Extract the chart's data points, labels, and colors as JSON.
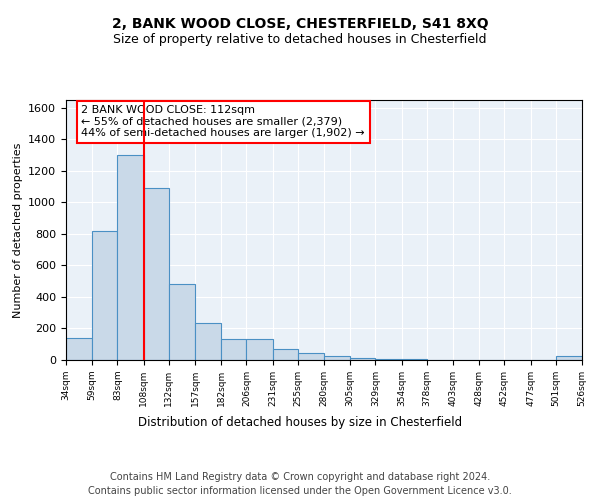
{
  "title": "2, BANK WOOD CLOSE, CHESTERFIELD, S41 8XQ",
  "subtitle": "Size of property relative to detached houses in Chesterfield",
  "xlabel": "Distribution of detached houses by size in Chesterfield",
  "ylabel": "Number of detached properties",
  "footer_line1": "Contains HM Land Registry data © Crown copyright and database right 2024.",
  "footer_line2": "Contains public sector information licensed under the Open Government Licence v3.0.",
  "annotation_line1": "2 BANK WOOD CLOSE: 112sqm",
  "annotation_line2": "← 55% of detached houses are smaller (2,379)",
  "annotation_line3": "44% of semi-detached houses are larger (1,902) →",
  "bar_left_edges": [
    34,
    59,
    83,
    108,
    132,
    157,
    182,
    206,
    231,
    255,
    280,
    305,
    329,
    354,
    378,
    403,
    428,
    452,
    477,
    501
  ],
  "bar_widths": [
    25,
    24,
    25,
    24,
    25,
    25,
    24,
    25,
    24,
    25,
    25,
    24,
    25,
    24,
    25,
    25,
    24,
    25,
    24,
    25
  ],
  "bar_heights": [
    140,
    820,
    1300,
    1090,
    480,
    235,
    135,
    135,
    70,
    45,
    25,
    10,
    5,
    5,
    3,
    2,
    2,
    2,
    1,
    25
  ],
  "bar_facecolor": "#c9d9e8",
  "bar_edgecolor": "#4a90c4",
  "red_line_x": 108,
  "ylim": [
    0,
    1650
  ],
  "xlim": [
    34,
    526
  ],
  "xtick_labels": [
    "34sqm",
    "59sqm",
    "83sqm",
    "108sqm",
    "132sqm",
    "157sqm",
    "182sqm",
    "206sqm",
    "231sqm",
    "255sqm",
    "280sqm",
    "305sqm",
    "329sqm",
    "354sqm",
    "378sqm",
    "403sqm",
    "428sqm",
    "452sqm",
    "477sqm",
    "501sqm",
    "526sqm"
  ],
  "xtick_positions": [
    34,
    59,
    83,
    108,
    132,
    157,
    182,
    206,
    231,
    255,
    280,
    305,
    329,
    354,
    378,
    403,
    428,
    452,
    477,
    501,
    526
  ],
  "background_color": "#eaf1f8",
  "title_fontsize": 10,
  "subtitle_fontsize": 9,
  "annotation_fontsize": 8,
  "footer_fontsize": 7,
  "ylabel_fontsize": 8,
  "xlabel_fontsize": 8.5,
  "ytick_fontsize": 8,
  "xtick_fontsize": 6.5
}
